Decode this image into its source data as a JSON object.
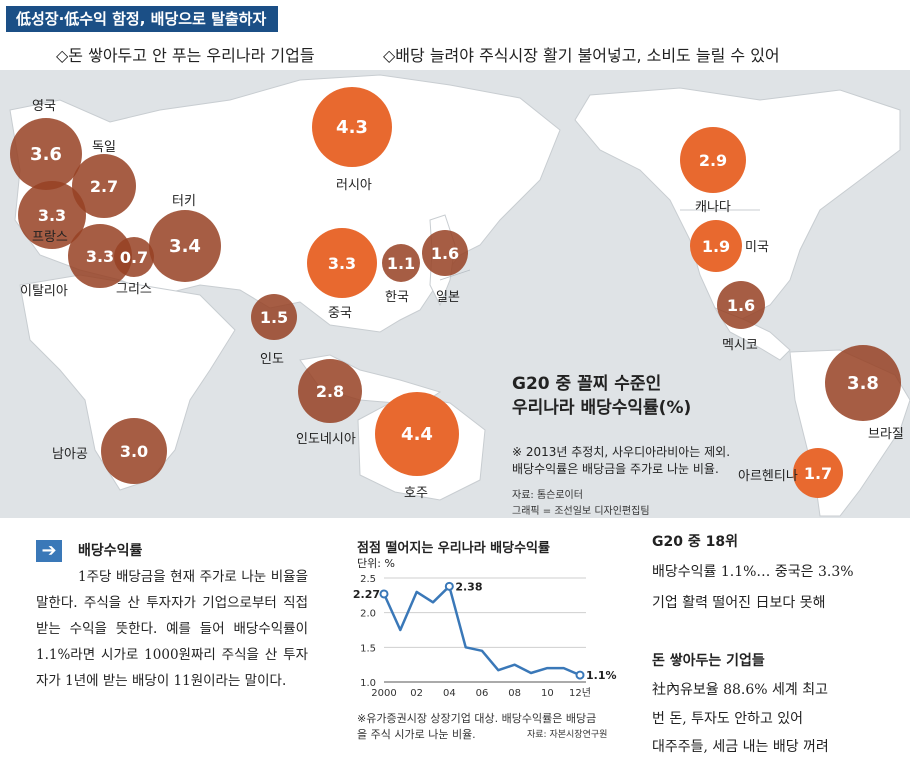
{
  "header": {
    "tag": "低성장·低수익 함정, 배당으로 탈출하자",
    "sub1": "◇돈 쌓아두고 안 푸는 우리나라 기업들",
    "sub2": "◇배당 늘려야 주식시장 활기 불어넣고,  소비도 늘릴 수 있어"
  },
  "colors": {
    "bubble_orange": "#e8692f",
    "bubble_brown": "#96412380",
    "header_bar": "#1b4f86",
    "line": "#3a78b8"
  },
  "map": {
    "bubbles": [
      {
        "country": "영국",
        "value": "3.6",
        "style": "brown"
      },
      {
        "country": "독일",
        "value": "2.7",
        "style": "brown"
      },
      {
        "country": "프랑스",
        "value": "3.3",
        "style": "brown"
      },
      {
        "country": "이탈리아",
        "value": "3.3",
        "style": "brown"
      },
      {
        "country": "그리스",
        "value": "0.7",
        "style": "brown"
      },
      {
        "country": "터키",
        "value": "3.4",
        "style": "brown"
      },
      {
        "country": "러시아",
        "value": "4.3",
        "style": "orange"
      },
      {
        "country": "중국",
        "value": "3.3",
        "style": "orange"
      },
      {
        "country": "한국",
        "value": "1.1",
        "style": "brown"
      },
      {
        "country": "일본",
        "value": "1.6",
        "style": "brown"
      },
      {
        "country": "인도",
        "value": "1.5",
        "style": "brown"
      },
      {
        "country": "인도네시아",
        "value": "2.8",
        "style": "brown"
      },
      {
        "country": "호주",
        "value": "4.4",
        "style": "orange"
      },
      {
        "country": "남아공",
        "value": "3.0",
        "style": "brown"
      },
      {
        "country": "캐나다",
        "value": "2.9",
        "style": "orange"
      },
      {
        "country": "미국",
        "value": "1.9",
        "style": "orange"
      },
      {
        "country": "멕시코",
        "value": "1.6",
        "style": "brown"
      },
      {
        "country": "브라질",
        "value": "3.8",
        "style": "brown"
      },
      {
        "country": "아르헨티나",
        "value": "1.7",
        "style": "orange"
      }
    ],
    "title_line1": "G20 중 꼴찌 수준인",
    "title_line2": "우리나라 배당수익률(%)",
    "note_line1": "※ 2013년 추정치, 사우디아라비아는 제외.",
    "note_line2": "배당수익률은 배당금을 주가로 나눈 비율.",
    "source": "자료: 톰슨로이터",
    "graphic": "그래픽 = 조선일보 디자인편집팀"
  },
  "definition": {
    "title": "배당수익률",
    "body": "1주당 배당금을 현재 주가로 나눈 비율을 말한다. 주식을 산 투자자가 기업으로부터 직접 받는 수익을 뜻한다. 예를 들어 배당수익률이 1.1%라면 시가로 1000원짜리 주식을 산 투자자가 1년에 받는 배당이 11원이라는 말이다."
  },
  "chart_data": {
    "type": "line",
    "title": "점점 떨어지는 우리나라 배당수익률",
    "unit": "단위: %",
    "x": [
      2000,
      2001,
      2002,
      2003,
      2004,
      2005,
      2006,
      2007,
      2008,
      2009,
      2010,
      2011,
      2012
    ],
    "x_tick_labels": [
      "2000",
      "02",
      "04",
      "06",
      "08",
      "10",
      "12년"
    ],
    "x_tick_values": [
      2000,
      2002,
      2004,
      2006,
      2008,
      2010,
      2012
    ],
    "values": [
      2.27,
      1.75,
      2.3,
      2.15,
      2.38,
      1.5,
      1.45,
      1.17,
      1.25,
      1.13,
      1.2,
      1.2,
      1.1
    ],
    "data_labels": [
      {
        "x": 2000,
        "label": "2.27"
      },
      {
        "x": 2004,
        "label": "2.38"
      },
      {
        "x": 2012,
        "label": "1.1%"
      }
    ],
    "y_ticks": [
      "1.0",
      "1.5",
      "2.0",
      "2.5"
    ],
    "y_tick_values": [
      1.0,
      1.5,
      2.0,
      2.5
    ],
    "ylim": [
      1.0,
      2.5
    ],
    "note_line1": "※유가증권시장 상장기업 대상. 배당수익률은 배당금",
    "note_line2": "을 주식 시가로 나눈 비율.",
    "source": "자료: 자본시장연구원"
  },
  "right": {
    "h1": "G20 중 18위",
    "l1": "배당수익률 1.1%… 중국은 3.3%",
    "l2": "기업 활력 떨어진 日보다 못해",
    "h2": "돈 쌓아두는 기업들",
    "l3": "社內유보율 88.6% 세계 최고",
    "l4": "번 돈, 투자도 안하고 있어",
    "l5": "대주주들, 세금 내는 배당 꺼려"
  }
}
